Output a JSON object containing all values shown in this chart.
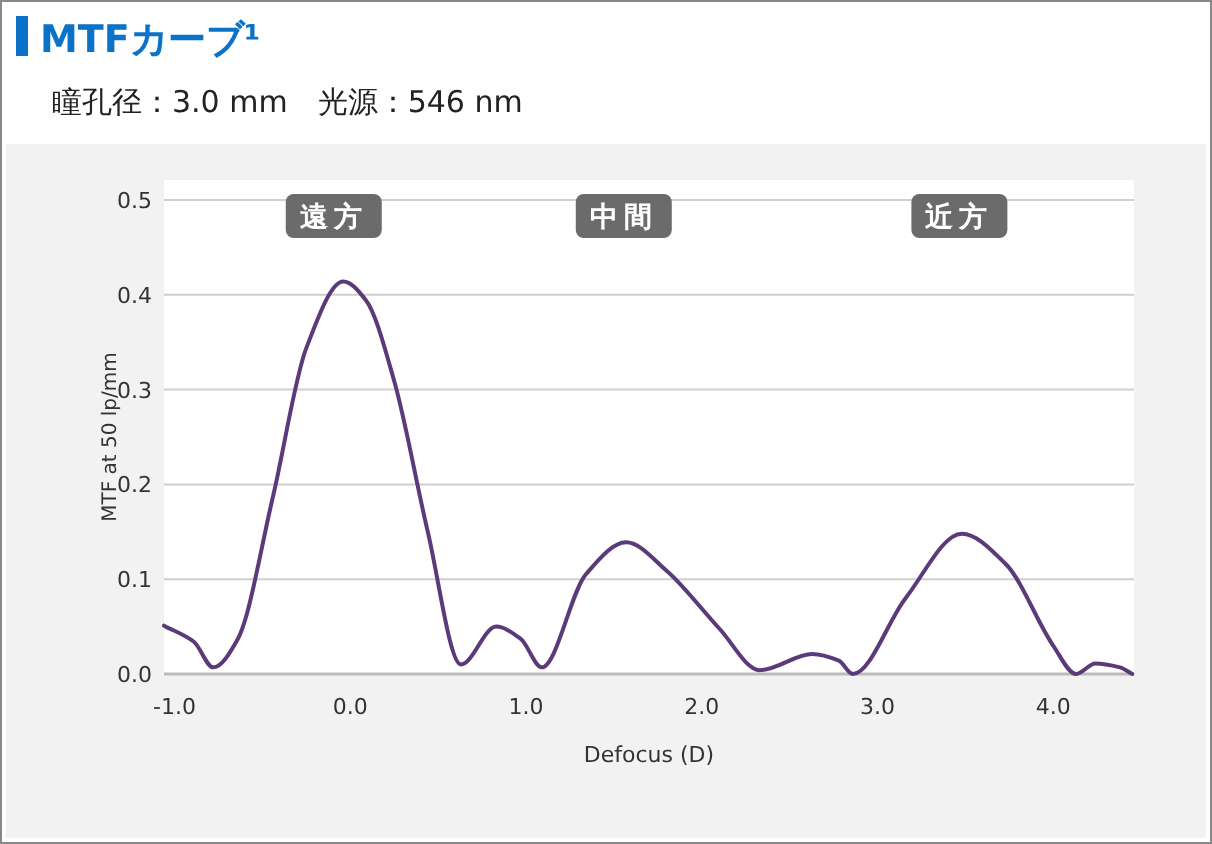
{
  "chart_data": {
    "type": "line",
    "title": "MTFカーブ¹",
    "subtitle": "瞳孔径：3.0 mm　光源：546 nm",
    "xlabel": "Defocus (D)",
    "ylabel": "MTF at 50 lp/mm",
    "xlim": [
      -1.06,
      4.46
    ],
    "ylim": [
      0,
      0.5
    ],
    "xticks": [
      {
        "value": -1,
        "label": "-1.0"
      },
      {
        "value": 0,
        "label": "0.0"
      },
      {
        "value": 1,
        "label": "1.0"
      },
      {
        "value": 2,
        "label": "2.0"
      },
      {
        "value": 3,
        "label": "3.0"
      },
      {
        "value": 4,
        "label": "4.0"
      }
    ],
    "yticks": [
      {
        "value": 0,
        "label": "0.0"
      },
      {
        "value": 0.1,
        "label": "0.1"
      },
      {
        "value": 0.2,
        "label": "0.2"
      },
      {
        "value": 0.3,
        "label": "0.3"
      },
      {
        "value": 0.4,
        "label": "0.4"
      },
      {
        "value": 0.5,
        "label": "0.5"
      }
    ],
    "grid": "y",
    "marker": "none",
    "line_style": "solid",
    "annotations": [
      "遠方",
      "中間",
      "近方"
    ],
    "series": [
      {
        "color": "#5b3a7a",
        "x": [
          -1.06,
          -0.89,
          -0.78,
          -0.64,
          -0.44,
          -0.25,
          -0.04,
          0.09,
          0.25,
          0.44,
          0.63,
          0.83,
          0.97,
          1.09,
          1.34,
          1.57,
          1.8,
          2.1,
          2.33,
          2.63,
          2.78,
          2.86,
          3.16,
          3.48,
          3.73,
          4.0,
          4.13,
          4.24,
          4.38,
          4.45
        ],
        "values": [
          0.051,
          0.034,
          0.007,
          0.037,
          0.187,
          0.344,
          0.414,
          0.394,
          0.309,
          0.151,
          0.01,
          0.05,
          0.037,
          0.007,
          0.105,
          0.139,
          0.109,
          0.048,
          0.004,
          0.021,
          0.014,
          0,
          0.08,
          0.148,
          0.116,
          0.03,
          0,
          0.011,
          0.007,
          0
        ]
      }
    ]
  }
}
